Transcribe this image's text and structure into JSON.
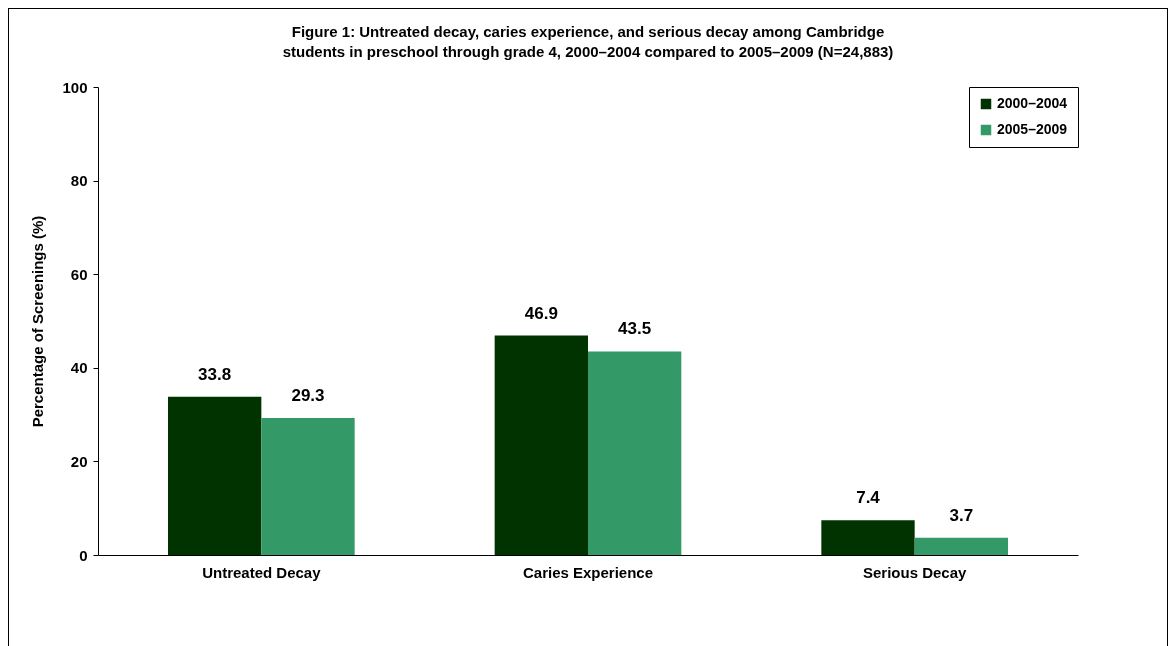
{
  "chart_data": {
    "type": "bar",
    "title": "Figure 1:  Untreated decay, caries experience, and serious decay among Cambridge students in preschool through grade 4,  2000–2004 compared to 2005–2009 (N=24,883)",
    "ylabel": "Percentage of Screenings (%)",
    "categories": [
      "Untreated Decay",
      "Caries Experience",
      "Serious Decay"
    ],
    "series": [
      {
        "name": "2000–2004",
        "color": "#003300",
        "values": [
          33.8,
          46.9,
          7.4
        ]
      },
      {
        "name": "2005–2009",
        "color": "#339966",
        "values": [
          29.3,
          43.5,
          3.7
        ]
      }
    ],
    "ylim": [
      0,
      100
    ],
    "yticks": [
      0,
      20,
      40,
      60,
      80,
      100
    ],
    "data_labels": true,
    "legend": "top right",
    "grid": false
  }
}
